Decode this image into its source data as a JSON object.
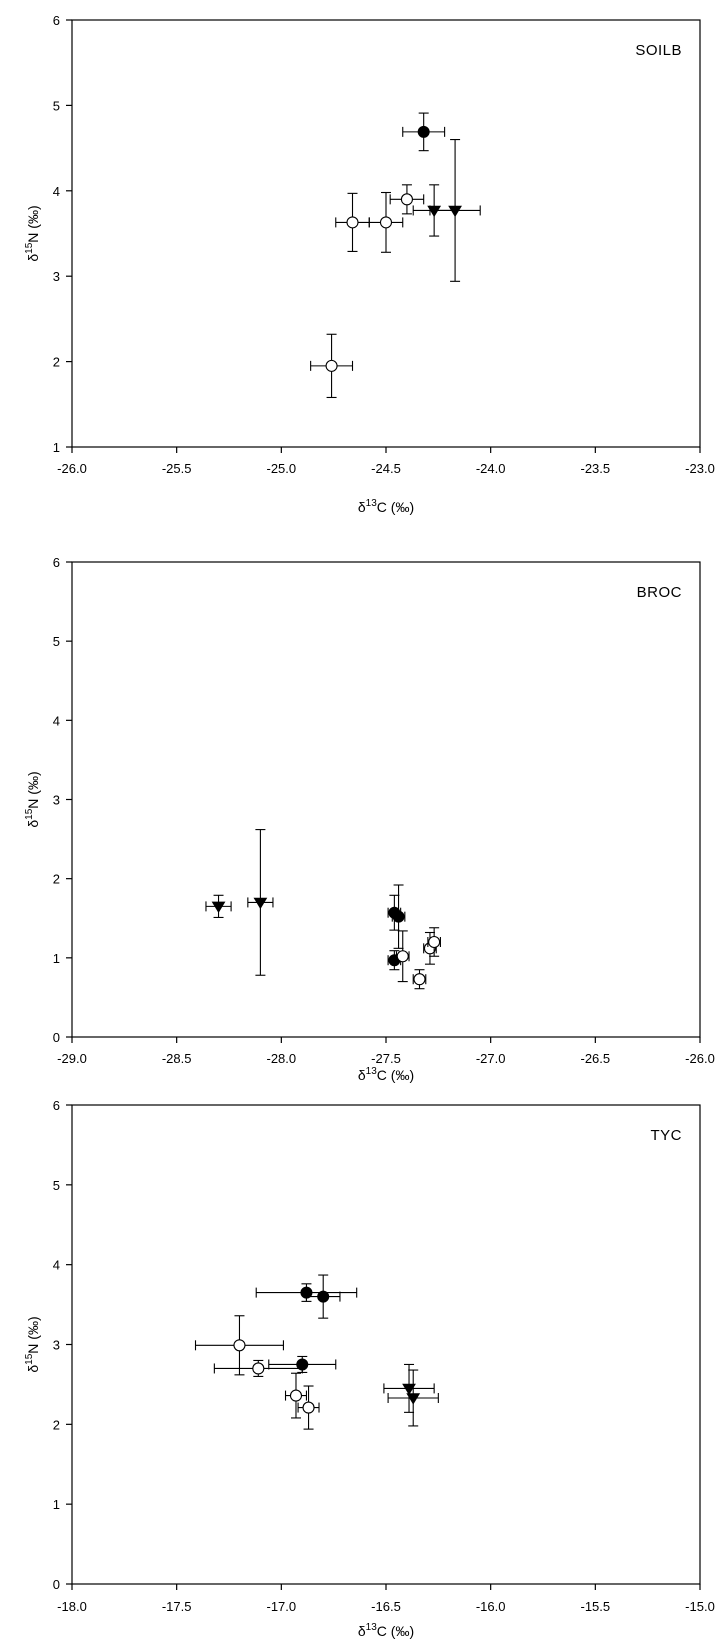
{
  "chart_data": [
    {
      "type": "scatter",
      "panel_label": "SOILB",
      "xlabel": {
        "greek": "δ",
        "sup": "13",
        "elem": "C",
        "unit": " (‰)"
      },
      "ylabel": {
        "greek": "δ",
        "sup": "15",
        "elem": "N",
        "unit": " (‰)"
      },
      "xlim": [
        -26.0,
        -23.0
      ],
      "ylim": [
        1,
        6
      ],
      "xticks": [
        "-26.0",
        "-25.5",
        "-25.0",
        "-24.5",
        "-24.0",
        "-23.5",
        "-23.0"
      ],
      "yticks": [
        "1",
        "2",
        "3",
        "4",
        "5",
        "6"
      ],
      "grid": false,
      "series": [
        {
          "marker": "filled-circle",
          "points": [
            {
              "x": -24.32,
              "y": 4.69,
              "xerr": 0.1,
              "yerr": 0.22
            }
          ]
        },
        {
          "marker": "open-circle",
          "points": [
            {
              "x": -24.66,
              "y": 3.63,
              "xerr": 0.08,
              "yerr": 0.34
            },
            {
              "x": -24.5,
              "y": 3.63,
              "xerr": 0.08,
              "yerr": 0.35
            },
            {
              "x": -24.4,
              "y": 3.9,
              "xerr": 0.08,
              "yerr": 0.17
            },
            {
              "x": -24.76,
              "y": 1.95,
              "xerr": 0.1,
              "yerr": 0.37
            }
          ]
        },
        {
          "marker": "filled-triangle-down",
          "points": [
            {
              "x": -24.27,
              "y": 3.77,
              "xerr": 0.1,
              "yerr": 0.3
            },
            {
              "x": -24.17,
              "y": 3.77,
              "xerr": 0.12,
              "yerr": 0.83
            }
          ]
        }
      ]
    },
    {
      "type": "scatter",
      "panel_label": "BROC",
      "xlabel": {
        "greek": "δ",
        "sup": "13",
        "elem": "C",
        "unit": " (‰)"
      },
      "ylabel": {
        "greek": "δ",
        "sup": "15",
        "elem": "N",
        "unit": " (‰)"
      },
      "xlim": [
        -29.0,
        -26.0
      ],
      "ylim": [
        0,
        6
      ],
      "xticks": [
        "-29.0",
        "-28.5",
        "-28.0",
        "-27.5",
        "-27.0",
        "-26.5",
        "-26.0"
      ],
      "yticks": [
        "0",
        "1",
        "2",
        "3",
        "4",
        "5",
        "6"
      ],
      "grid": false,
      "series": [
        {
          "marker": "filled-circle",
          "points": [
            {
              "x": -27.46,
              "y": 1.57,
              "xerr": 0.03,
              "yerr": 0.22
            },
            {
              "x": -27.44,
              "y": 1.52,
              "xerr": 0.03,
              "yerr": 0.4
            },
            {
              "x": -27.46,
              "y": 0.97,
              "xerr": 0.03,
              "yerr": 0.12
            }
          ]
        },
        {
          "marker": "open-circle",
          "points": [
            {
              "x": -27.42,
              "y": 1.02,
              "xerr": 0.03,
              "yerr": 0.32
            },
            {
              "x": -27.34,
              "y": 0.73,
              "xerr": 0.03,
              "yerr": 0.12
            },
            {
              "x": -27.29,
              "y": 1.12,
              "xerr": 0.03,
              "yerr": 0.2
            },
            {
              "x": -27.27,
              "y": 1.2,
              "xerr": 0.03,
              "yerr": 0.18
            }
          ]
        },
        {
          "marker": "filled-triangle-down",
          "points": [
            {
              "x": -28.3,
              "y": 1.65,
              "xerr": 0.06,
              "yerr": 0.14
            },
            {
              "x": -28.1,
              "y": 1.7,
              "xerr": 0.06,
              "yerr": 0.92
            }
          ]
        }
      ]
    },
    {
      "type": "scatter",
      "panel_label": "TYC",
      "xlabel": {
        "greek": "δ",
        "sup": "13",
        "elem": "C",
        "unit": " (‰)"
      },
      "ylabel": {
        "greek": "δ",
        "sup": "15",
        "elem": "N",
        "unit": " (‰)"
      },
      "xlim": [
        -18.0,
        -15.0
      ],
      "ylim": [
        0,
        6
      ],
      "xticks": [
        "-18.0",
        "-17.5",
        "-17.0",
        "-16.5",
        "-16.0",
        "-15.5",
        "-15.0"
      ],
      "yticks": [
        "0",
        "1",
        "2",
        "3",
        "4",
        "5",
        "6"
      ],
      "grid": false,
      "series": [
        {
          "marker": "filled-circle",
          "points": [
            {
              "x": -16.88,
              "y": 3.65,
              "xerr": 0.24,
              "yerr": 0.11
            },
            {
              "x": -16.8,
              "y": 3.6,
              "xerr": 0.08,
              "yerr": 0.27
            },
            {
              "x": -16.9,
              "y": 2.75,
              "xerr": 0.16,
              "yerr": 0.1
            }
          ]
        },
        {
          "marker": "open-circle",
          "points": [
            {
              "x": -17.2,
              "y": 2.99,
              "xerr": 0.21,
              "yerr": 0.37
            },
            {
              "x": -17.11,
              "y": 2.7,
              "xerr": 0.21,
              "yerr": 0.1
            },
            {
              "x": -16.93,
              "y": 2.36,
              "xerr": 0.05,
              "yerr": 0.28
            },
            {
              "x": -16.87,
              "y": 2.21,
              "xerr": 0.05,
              "yerr": 0.27
            }
          ]
        },
        {
          "marker": "filled-triangle-down",
          "points": [
            {
              "x": -16.39,
              "y": 2.45,
              "xerr": 0.12,
              "yerr": 0.3
            },
            {
              "x": -16.37,
              "y": 2.33,
              "xerr": 0.12,
              "yerr": 0.35
            }
          ]
        }
      ]
    }
  ]
}
